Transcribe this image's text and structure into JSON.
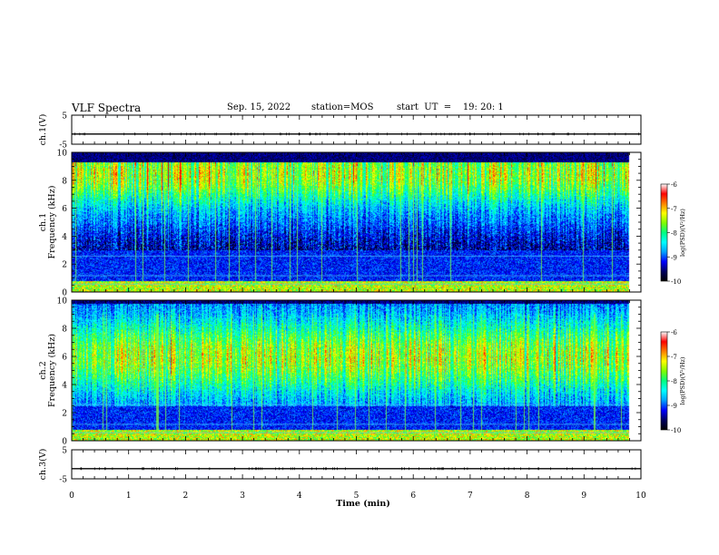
{
  "header": {
    "title": "VLF Spectra",
    "date": "Sep. 15, 2022",
    "station": "station=MOS",
    "start": "start  UT  =    19: 20: 1"
  },
  "chart_data": [
    {
      "type": "line",
      "name": "ch1-waveform",
      "ylabel": "ch.1(V)",
      "ylim": [
        -5,
        5
      ],
      "yticks": [
        5,
        -5
      ],
      "xlim": [
        0,
        10
      ],
      "baseline": -1.5
    },
    {
      "type": "heatmap",
      "name": "ch1-spectrogram",
      "ylabel_line1": "ch.1",
      "ylabel_line2": "Frequency (kHz)",
      "ylim": [
        0,
        10
      ],
      "yticks": [
        0,
        2,
        4,
        6,
        8,
        10
      ],
      "xlim": [
        0,
        10
      ],
      "data_end_min": 9.8,
      "emission_band_khz": [
        3.0,
        9.3
      ],
      "emission_peak_khz": 8.5,
      "colorbar": {
        "label": "log(PSD)(V²/Hz)",
        "range": [
          -10,
          -6
        ],
        "ticks": [
          -6,
          -7,
          -8,
          -9,
          -10
        ]
      }
    },
    {
      "type": "heatmap",
      "name": "ch2-spectrogram",
      "ylabel_line1": "ch.2",
      "ylabel_line2": "Frequency (kHz)",
      "ylim": [
        0,
        10
      ],
      "yticks": [
        0,
        2,
        4,
        6,
        8,
        10
      ],
      "xlim": [
        0,
        10
      ],
      "data_end_min": 9.8,
      "emission_band_khz": [
        2.5,
        9.8
      ],
      "emission_peak_khz": 6.0,
      "colorbar": {
        "label": "log(PSD)(V²/Hz)",
        "range": [
          -10,
          -6
        ],
        "ticks": [
          -6,
          -7,
          -8,
          -9,
          -10
        ]
      }
    },
    {
      "type": "line",
      "name": "ch3-waveform",
      "ylabel": "ch.3(V)",
      "ylim": [
        -5,
        5
      ],
      "yticks": [
        5,
        -5
      ],
      "xlim": [
        0,
        10
      ],
      "baseline": -1.5,
      "xlabel": "Time  (min)",
      "xticks": [
        0,
        1,
        2,
        3,
        4,
        5,
        6,
        7,
        8,
        9,
        10
      ]
    }
  ],
  "colors": {
    "colormap": [
      "#000000",
      "#000060",
      "#0000ff",
      "#00a0ff",
      "#00ffff",
      "#00ff80",
      "#80ff00",
      "#ffff00",
      "#ff8000",
      "#ff0000",
      "#ffffff"
    ],
    "axes": "#000000"
  }
}
